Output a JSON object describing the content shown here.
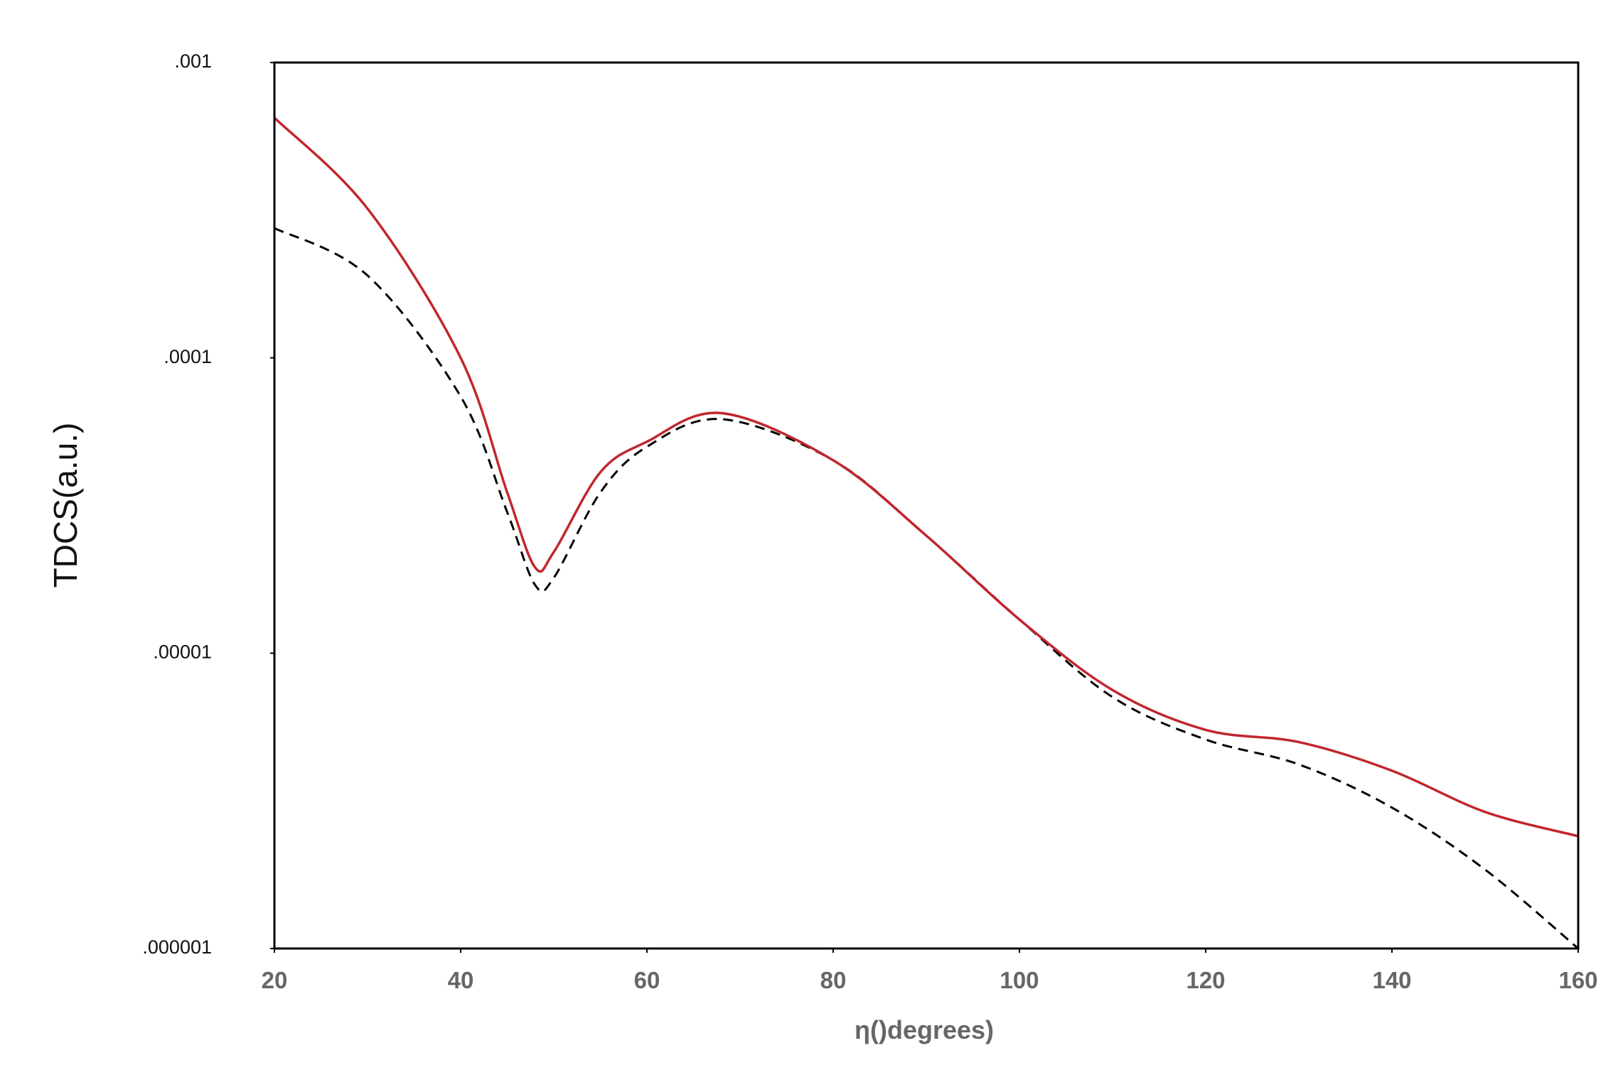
{
  "chart_data": {
    "type": "line",
    "xlabel": "η()degrees)",
    "ylabel": "TDCS(a.u.)",
    "xlim": [
      20,
      160
    ],
    "xticks": [
      20,
      40,
      60,
      80,
      100,
      120,
      140,
      160
    ],
    "ylim": [
      1e-06,
      0.001
    ],
    "yscale": "log",
    "yticks": [
      {
        "value": 0.001,
        "label": ".001"
      },
      {
        "value": 0.0001,
        "label": ".0001"
      },
      {
        "value": 1e-05,
        "label": ".00001"
      },
      {
        "value": 1e-06,
        "label": ".000001"
      }
    ],
    "x": [
      20,
      30,
      40,
      45,
      48,
      50,
      55,
      60,
      68,
      80,
      90,
      100,
      110,
      120,
      130,
      140,
      150,
      160
    ],
    "series": [
      {
        "color": "#c0272d",
        "linestyle": "solid",
        "values": [
          0.00065,
          0.00032,
          0.0001,
          3.5e-05,
          1.95e-05,
          2.2e-05,
          4.1e-05,
          5.2e-05,
          6.5e-05,
          4.5e-05,
          2.5e-05,
          1.3e-05,
          7.5e-06,
          5.5e-06,
          5e-06,
          4e-06,
          2.9e-06,
          2.4e-06
        ]
      },
      {
        "color": "#000000",
        "linestyle": "dashed",
        "values": [
          0.000275,
          0.00019,
          7.4e-05,
          3e-05,
          1.7e-05,
          1.8e-05,
          3.5e-05,
          5e-05,
          6.2e-05,
          4.5e-05,
          2.5e-05,
          1.3e-05,
          7.1e-06,
          5.1e-06,
          4.2e-06,
          3e-06,
          1.85e-06,
          1e-06
        ]
      }
    ]
  }
}
